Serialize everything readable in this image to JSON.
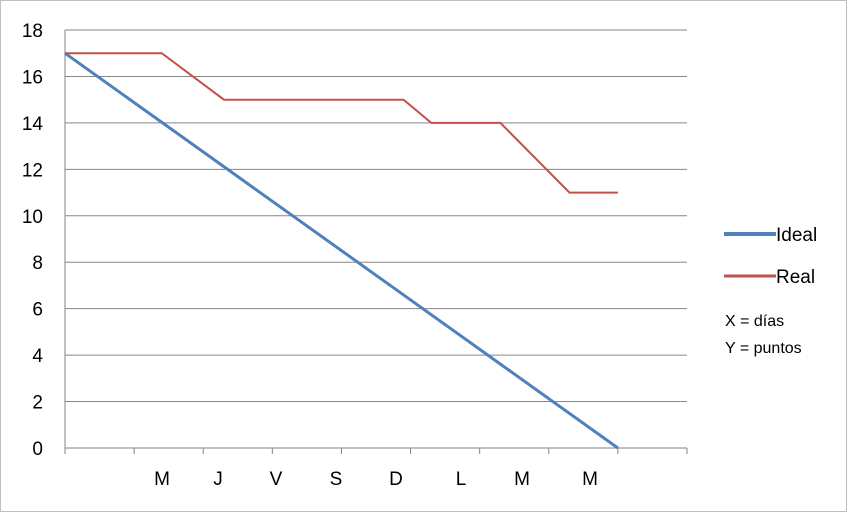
{
  "chart_data": {
    "type": "line",
    "title": "",
    "xlabel": "",
    "ylabel": "",
    "categories": [
      "",
      "M",
      "J",
      "V",
      "S",
      "D",
      "L",
      "M",
      "M"
    ],
    "ylim": [
      0,
      18
    ],
    "yticks": [
      0,
      2,
      4,
      6,
      8,
      10,
      12,
      14,
      16,
      18
    ],
    "grid": true,
    "legend_position": "right",
    "series": [
      {
        "name": "Ideal",
        "color": "#4f81bd",
        "x": [
          0,
          8
        ],
        "values": [
          17,
          0
        ]
      },
      {
        "name": "Real",
        "color": "#c0504d",
        "x": [
          0,
          1.4,
          2.3,
          3.4,
          4.9,
          5.3,
          6.3,
          7.3,
          8
        ],
        "values": [
          17,
          17,
          15,
          15,
          15,
          14,
          14,
          11,
          11
        ]
      }
    ],
    "annotations": [
      "X = días",
      "Y = puntos"
    ]
  }
}
